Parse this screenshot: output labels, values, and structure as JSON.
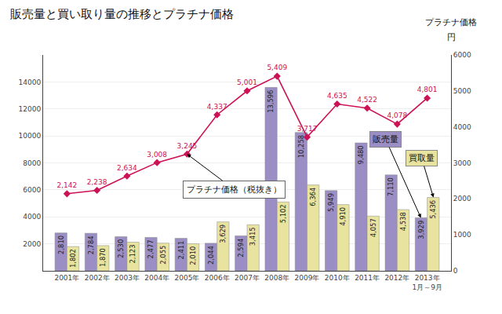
{
  "chart_data": {
    "type": "bar",
    "title": "販売量と買い取り量の推移とプラチナ価格",
    "categories": [
      "2001年",
      "2002年",
      "2003年",
      "2004年",
      "2005年",
      "2006年",
      "2007年",
      "2008年",
      "2009年",
      "2010年",
      "2011年",
      "2012年",
      "2013年\n1月～9月"
    ],
    "series": [
      {
        "name": "販売量",
        "type": "bar",
        "color": "#9b8ec4",
        "values": [
          2810,
          2784,
          2530,
          2477,
          2411,
          2044,
          2594,
          13596,
          10258,
          5949,
          9480,
          7110,
          3929
        ],
        "value_labels": [
          "2,810",
          "2,784",
          "2,530",
          "2,477",
          "2,411",
          "2,044",
          "2,594",
          "13,596",
          "10,258",
          "5,949",
          "9,480",
          "7,110",
          "3,929"
        ]
      },
      {
        "name": "買取量",
        "type": "bar",
        "color": "#e8e4a0",
        "values": [
          1802,
          1870,
          2123,
          2055,
          2010,
          3629,
          3415,
          5102,
          6364,
          4910,
          4057,
          4538,
          5436
        ],
        "value_labels": [
          "1,802",
          "1,870",
          "2,123",
          "2,055",
          "2,010",
          "3,629",
          "3,415",
          "5,102",
          "6,364",
          "4,910",
          "4,057",
          "4,538",
          "5,436"
        ]
      },
      {
        "name": "プラチナ価格（税抜き）",
        "type": "line",
        "axis": "y2",
        "color": "#cc1155",
        "marker": "diamond",
        "values": [
          2142,
          2238,
          2634,
          3008,
          3245,
          4337,
          5001,
          5409,
          3717,
          4635,
          4522,
          4078,
          4801
        ],
        "value_labels": [
          "2,142",
          "2,238",
          "2,634",
          "3,008",
          "3,245",
          "4,337",
          "5,001",
          "5,409",
          "3,717",
          "4,635",
          "4,522",
          "4,078",
          "4,801"
        ]
      }
    ],
    "ylim": [
      0,
      16000
    ],
    "yticks": [
      2000,
      4000,
      6000,
      8000,
      10000,
      12000,
      14000
    ],
    "y2lim": [
      0,
      6000
    ],
    "y2ticks": [
      0,
      1000,
      2000,
      3000,
      4000,
      5000,
      6000
    ],
    "annotations": [
      "プラチナ価格",
      "円"
    ],
    "grid": true,
    "data_labels": true
  }
}
